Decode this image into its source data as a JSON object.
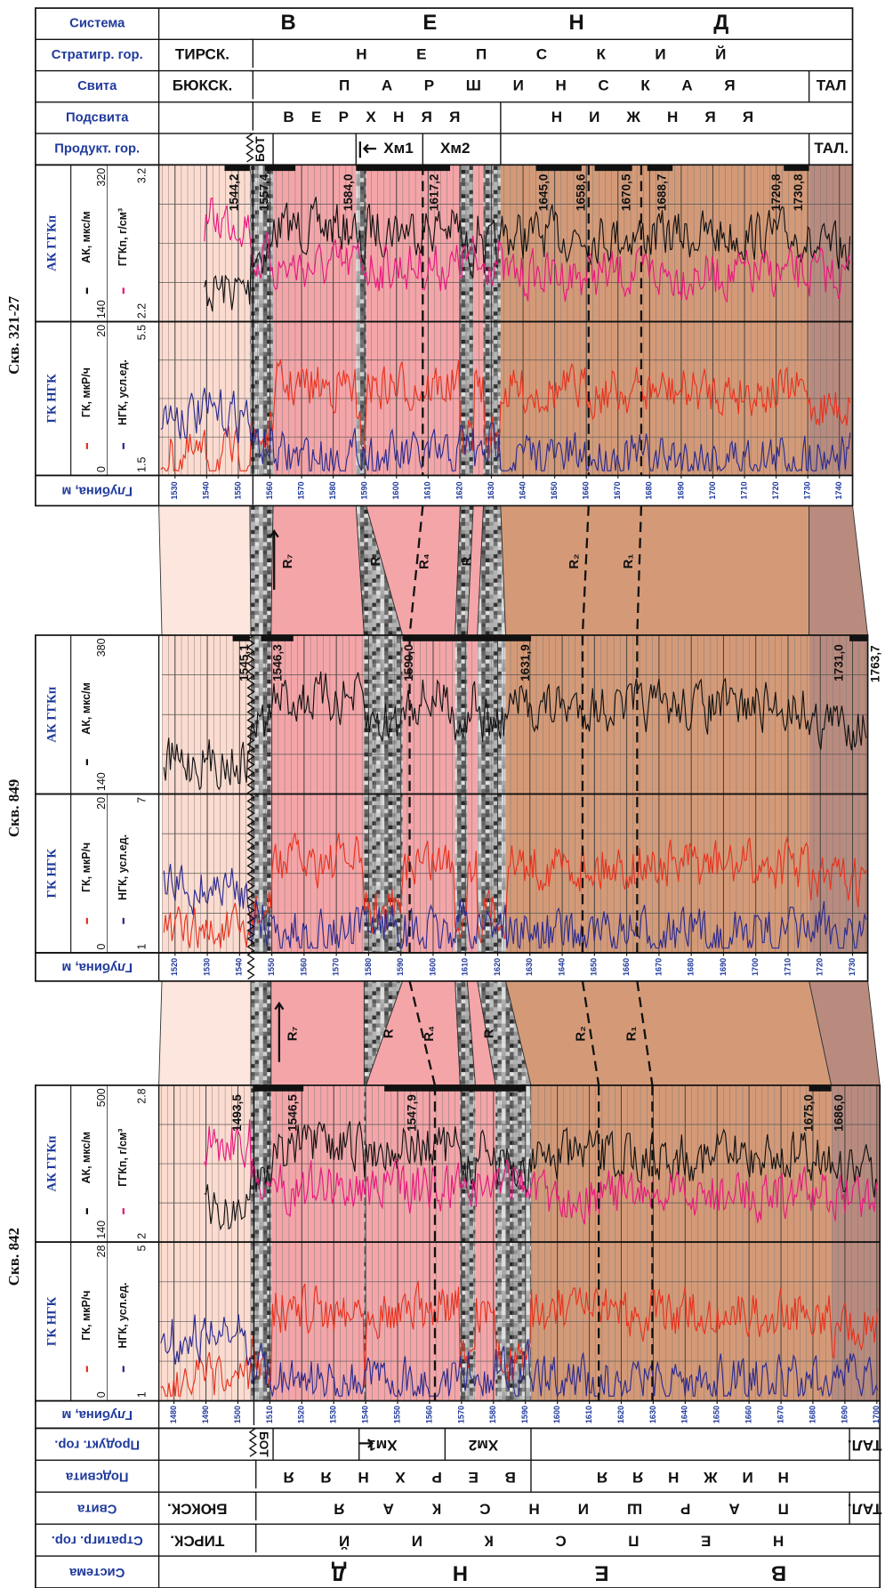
{
  "header_top": {
    "rows": [
      {
        "label": "Система",
        "cells": [
          "В",
          "Е",
          "Н",
          "Д"
        ]
      },
      {
        "label": "Стратигр. гор.",
        "cells": [
          "ТИРСК.",
          "Н Е П С К И Й"
        ]
      },
      {
        "label": "Свита",
        "cells": [
          "БЮКСК.",
          "П А Р Ш И Н С К А Я",
          "ТАЛ"
        ]
      },
      {
        "label": "Подсвита",
        "cells": [
          "В Е Р Х Н Я Я",
          "Н И Ж Н Я Я"
        ]
      },
      {
        "label": "Продукт. гор.",
        "cells": [
          "БОТ",
          "Хм1",
          "Хм2",
          "ТАЛ."
        ]
      }
    ]
  },
  "wells": [
    {
      "name": "Скв. 321-27",
      "tracks": [
        {
          "title": "АК ГГКп",
          "curves": [
            {
              "label": "АК, мкс/м",
              "min": 140,
              "max": 320
            },
            {
              "label": "ГГКп, г/см³",
              "min": 2.2,
              "max": 3.2
            }
          ]
        },
        {
          "title": "ГК НГК",
          "curves": [
            {
              "label": "ГК, мкР/ч",
              "min": 0,
              "max": 20
            },
            {
              "label": "НГК, усл.ед.",
              "min": 1.5,
              "max": 5.5
            }
          ]
        }
      ],
      "depth_label": "Глубина, м",
      "depth_ticks": [
        1530,
        1540,
        1550,
        1560,
        1570,
        1580,
        1590,
        1600,
        1610,
        1620,
        1630,
        1640,
        1650,
        1660,
        1670,
        1680,
        1690,
        1700,
        1710,
        1720,
        1730,
        1740
      ],
      "markers": [
        "1544,2",
        "1557,4",
        "1584,0",
        "1617,2",
        "1645,0",
        "1658,6",
        "1670,5",
        "1688,7",
        "1720,8",
        "1730,8"
      ]
    },
    {
      "name": "Скв. 849",
      "tracks": [
        {
          "title": "АК ГГКп",
          "curves": [
            {
              "label": "АК, мкс/м",
              "min": 140,
              "max": 380
            }
          ]
        },
        {
          "title": "ГК НГК",
          "curves": [
            {
              "label": "ГК, мкР/ч",
              "min": 0,
              "max": 20
            },
            {
              "label": "НГК, усл.ед.",
              "min": 1,
              "max": 7
            }
          ]
        }
      ],
      "depth_label": "Глубина, м",
      "depth_ticks": [
        1520,
        1530,
        1540,
        1550,
        1560,
        1570,
        1580,
        1590,
        1600,
        1610,
        1620,
        1630,
        1640,
        1650,
        1660,
        1670,
        1680,
        1690,
        1700,
        1710,
        1720,
        1730
      ],
      "markers": [
        "1545,1",
        "1546,3",
        "1590,0",
        "1631,9",
        "1731,0",
        "1763,7"
      ]
    },
    {
      "name": "Скв. 842",
      "tracks": [
        {
          "title": "АК ГГКп",
          "curves": [
            {
              "label": "АК, мкс/м",
              "min": 140,
              "max": 500
            },
            {
              "label": "ГГКп, г/см³",
              "min": 2,
              "max": 2.8
            }
          ]
        },
        {
          "title": "ГК НГК",
          "curves": [
            {
              "label": "ГК, мкР/ч",
              "min": 0,
              "max": 28
            },
            {
              "label": "НГК, усл.ед.",
              "min": 1,
              "max": 5
            }
          ]
        }
      ],
      "depth_label": "Глубина, м",
      "depth_ticks": [
        1480,
        1490,
        1500,
        1510,
        1520,
        1530,
        1540,
        1550,
        1560,
        1570,
        1580,
        1590,
        1600,
        1610,
        1620,
        1630,
        1640,
        1650,
        1660,
        1670,
        1680,
        1690,
        1700
      ],
      "markers": [
        "1493,5",
        "1546,5",
        "1547,9",
        "1675,0",
        "1686,0"
      ]
    }
  ],
  "correlation": [
    {
      "labels": [
        "R₇",
        "R",
        "R₄",
        "R",
        "R₂",
        "R₁"
      ]
    },
    {
      "labels": [
        "R₇",
        "R",
        "R₄",
        "R",
        "R₂",
        "R₁"
      ]
    }
  ],
  "header_bottom": {
    "rows": [
      {
        "label": "Продукт. гор.",
        "cells": [
          "БОТ",
          "Хм1",
          "Хм2",
          "ТАЛ."
        ]
      },
      {
        "label": "Подсвита",
        "cells": [
          "В Е Р Х Н Я Я",
          "Н И Ж Н Я Я"
        ]
      },
      {
        "label": "Свита",
        "cells": [
          "БЮКСК.",
          "П А Р Ш И Н С К А Я",
          "ТАЛ."
        ]
      },
      {
        "label": "Стратигр. гор.",
        "cells": [
          "ТИРСК.",
          "Н Е П С К И Й"
        ]
      },
      {
        "label": "Система",
        "cells": [
          "В",
          "Е",
          "Н",
          "Д"
        ]
      }
    ]
  }
}
